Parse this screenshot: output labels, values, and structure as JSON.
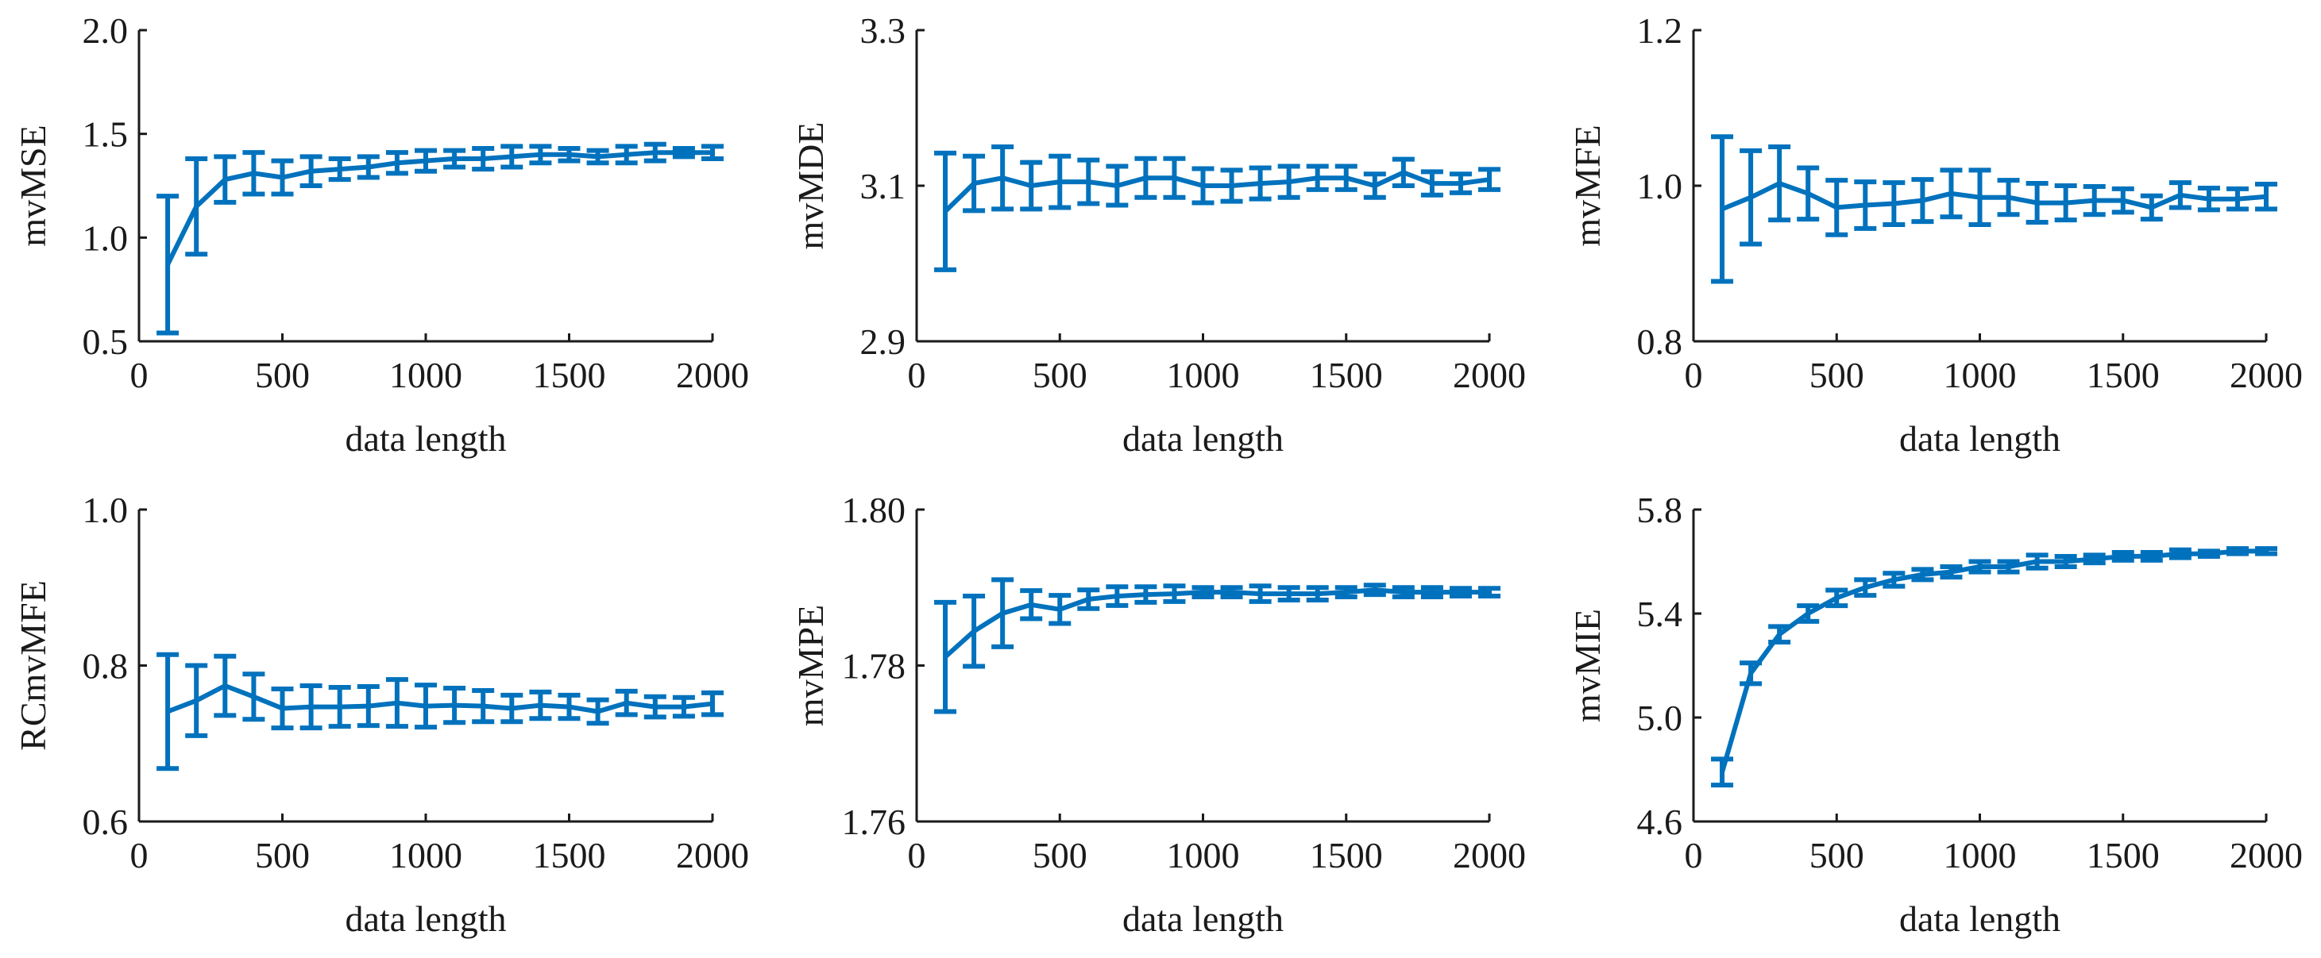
{
  "colors": {
    "series": "#0072bd",
    "axis": "#1a1a1a"
  },
  "chart_data": [
    {
      "type": "line",
      "error_bars": true,
      "title": "",
      "xlabel": "data length",
      "ylabel": "mvMSE",
      "xlim": [
        0,
        2000
      ],
      "ylim": [
        0.5,
        2.0
      ],
      "xticks": [
        0,
        500,
        1000,
        1500,
        2000
      ],
      "xtick_labels": [
        "0",
        "500",
        "1000",
        "1500",
        "2000"
      ],
      "yticks": [
        0.5,
        1.0,
        1.5,
        2.0
      ],
      "ytick_labels": [
        "0.5",
        "1.0",
        "1.5",
        "2.0"
      ],
      "x": [
        100,
        200,
        300,
        400,
        500,
        600,
        700,
        800,
        900,
        1000,
        1100,
        1200,
        1300,
        1400,
        1500,
        1600,
        1700,
        1800,
        1900,
        2000
      ],
      "y": [
        0.87,
        1.15,
        1.28,
        1.31,
        1.29,
        1.32,
        1.33,
        1.34,
        1.36,
        1.37,
        1.38,
        1.38,
        1.39,
        1.4,
        1.4,
        1.39,
        1.4,
        1.41,
        1.41,
        1.41
      ],
      "err": [
        0.33,
        0.23,
        0.11,
        0.1,
        0.08,
        0.07,
        0.05,
        0.05,
        0.05,
        0.05,
        0.04,
        0.05,
        0.05,
        0.04,
        0.03,
        0.03,
        0.04,
        0.04,
        0.02,
        0.03
      ]
    },
    {
      "type": "line",
      "error_bars": true,
      "title": "",
      "xlabel": "data length",
      "ylabel": "mvMDE",
      "xlim": [
        0,
        2000
      ],
      "ylim": [
        2.9,
        3.3
      ],
      "xticks": [
        0,
        500,
        1000,
        1500,
        2000
      ],
      "xtick_labels": [
        "0",
        "500",
        "1000",
        "1500",
        "2000"
      ],
      "yticks": [
        2.9,
        3.1,
        3.3
      ],
      "ytick_labels": [
        "2.9",
        "3.1",
        "3.3"
      ],
      "x": [
        100,
        200,
        300,
        400,
        500,
        600,
        700,
        800,
        900,
        1000,
        1100,
        1200,
        1300,
        1400,
        1500,
        1600,
        1700,
        1800,
        1900,
        2000
      ],
      "y": [
        3.067,
        3.103,
        3.11,
        3.1,
        3.105,
        3.105,
        3.1,
        3.11,
        3.11,
        3.1,
        3.1,
        3.103,
        3.105,
        3.11,
        3.11,
        3.1,
        3.117,
        3.103,
        3.103,
        3.108
      ],
      "err": [
        0.075,
        0.035,
        0.04,
        0.03,
        0.033,
        0.028,
        0.025,
        0.025,
        0.025,
        0.022,
        0.02,
        0.02,
        0.02,
        0.015,
        0.015,
        0.015,
        0.017,
        0.015,
        0.012,
        0.013
      ]
    },
    {
      "type": "line",
      "error_bars": true,
      "title": "",
      "xlabel": "data length",
      "ylabel": "mvMFE",
      "xlim": [
        0,
        2000
      ],
      "ylim": [
        0.8,
        1.2
      ],
      "xticks": [
        0,
        500,
        1000,
        1500,
        2000
      ],
      "xtick_labels": [
        "0",
        "500",
        "1000",
        "1500",
        "2000"
      ],
      "yticks": [
        0.8,
        1.0,
        1.2
      ],
      "ytick_labels": [
        "0.8",
        "1.0",
        "1.2"
      ],
      "x": [
        100,
        200,
        300,
        400,
        500,
        600,
        700,
        800,
        900,
        1000,
        1100,
        1200,
        1300,
        1400,
        1500,
        1600,
        1700,
        1800,
        1900,
        2000
      ],
      "y": [
        0.97,
        0.985,
        1.003,
        0.99,
        0.972,
        0.975,
        0.977,
        0.981,
        0.99,
        0.985,
        0.985,
        0.978,
        0.978,
        0.981,
        0.981,
        0.972,
        0.988,
        0.983,
        0.983,
        0.986
      ],
      "err": [
        0.093,
        0.06,
        0.047,
        0.033,
        0.035,
        0.03,
        0.027,
        0.027,
        0.03,
        0.035,
        0.022,
        0.025,
        0.022,
        0.018,
        0.015,
        0.015,
        0.016,
        0.014,
        0.013,
        0.016
      ]
    },
    {
      "type": "line",
      "error_bars": true,
      "title": "",
      "xlabel": "data length",
      "ylabel": "RCmvMFE",
      "xlim": [
        0,
        2000
      ],
      "ylim": [
        0.6,
        1.0
      ],
      "xticks": [
        0,
        500,
        1000,
        1500,
        2000
      ],
      "xtick_labels": [
        "0",
        "500",
        "1000",
        "1500",
        "2000"
      ],
      "yticks": [
        0.6,
        0.8,
        1.0
      ],
      "ytick_labels": [
        "0.6",
        "0.8",
        "1.0"
      ],
      "x": [
        100,
        200,
        300,
        400,
        500,
        600,
        700,
        800,
        900,
        1000,
        1100,
        1200,
        1300,
        1400,
        1500,
        1600,
        1700,
        1800,
        1900,
        2000
      ],
      "y": [
        0.741,
        0.755,
        0.774,
        0.76,
        0.745,
        0.747,
        0.747,
        0.748,
        0.752,
        0.748,
        0.749,
        0.748,
        0.745,
        0.749,
        0.747,
        0.741,
        0.752,
        0.747,
        0.747,
        0.751
      ],
      "err": [
        0.073,
        0.045,
        0.038,
        0.029,
        0.025,
        0.027,
        0.025,
        0.025,
        0.03,
        0.027,
        0.022,
        0.02,
        0.017,
        0.017,
        0.015,
        0.015,
        0.015,
        0.013,
        0.012,
        0.014
      ]
    },
    {
      "type": "line",
      "error_bars": true,
      "title": "",
      "xlabel": "data length",
      "ylabel": "mvMPE",
      "xlim": [
        0,
        2000
      ],
      "ylim": [
        1.76,
        1.8
      ],
      "xticks": [
        0,
        500,
        1000,
        1500,
        2000
      ],
      "xtick_labels": [
        "0",
        "500",
        "1000",
        "1500",
        "2000"
      ],
      "yticks": [
        1.76,
        1.78,
        1.8
      ],
      "ytick_labels": [
        "1.76",
        "1.78",
        "1.80"
      ],
      "x": [
        100,
        200,
        300,
        400,
        500,
        600,
        700,
        800,
        900,
        1000,
        1100,
        1200,
        1300,
        1400,
        1500,
        1600,
        1700,
        1800,
        1900,
        2000
      ],
      "y": [
        1.7811,
        1.7844,
        1.7867,
        1.7878,
        1.7872,
        1.7885,
        1.7889,
        1.7891,
        1.7892,
        1.7894,
        1.7894,
        1.7892,
        1.7892,
        1.7892,
        1.7894,
        1.7897,
        1.7894,
        1.7894,
        1.7894,
        1.7894
      ],
      "err": [
        0.007,
        0.0045,
        0.0043,
        0.0018,
        0.0018,
        0.0012,
        0.0012,
        0.001,
        0.001,
        0.0006,
        0.0006,
        0.001,
        0.0008,
        0.0008,
        0.0006,
        0.0006,
        0.0006,
        0.0006,
        0.0005,
        0.0005
      ]
    },
    {
      "type": "line",
      "error_bars": true,
      "title": "",
      "xlabel": "data length",
      "ylabel": "mvMIE",
      "xlim": [
        0,
        2000
      ],
      "ylim": [
        4.6,
        5.8
      ],
      "xticks": [
        0,
        500,
        1000,
        1500,
        2000
      ],
      "xtick_labels": [
        "0",
        "500",
        "1000",
        "1500",
        "2000"
      ],
      "yticks": [
        4.6,
        5.0,
        5.4,
        5.8
      ],
      "ytick_labels": [
        "4.6",
        "5.0",
        "5.4",
        "5.8"
      ],
      "x": [
        100,
        200,
        300,
        400,
        500,
        600,
        700,
        800,
        900,
        1000,
        1100,
        1200,
        1300,
        1400,
        1500,
        1600,
        1700,
        1800,
        1900,
        2000
      ],
      "y": [
        4.79,
        5.17,
        5.32,
        5.4,
        5.46,
        5.5,
        5.53,
        5.55,
        5.56,
        5.58,
        5.58,
        5.6,
        5.6,
        5.61,
        5.62,
        5.62,
        5.63,
        5.63,
        5.64,
        5.64
      ],
      "err": [
        0.05,
        0.04,
        0.03,
        0.03,
        0.03,
        0.03,
        0.025,
        0.02,
        0.02,
        0.02,
        0.02,
        0.025,
        0.02,
        0.015,
        0.015,
        0.015,
        0.015,
        0.01,
        0.01,
        0.01
      ]
    }
  ]
}
